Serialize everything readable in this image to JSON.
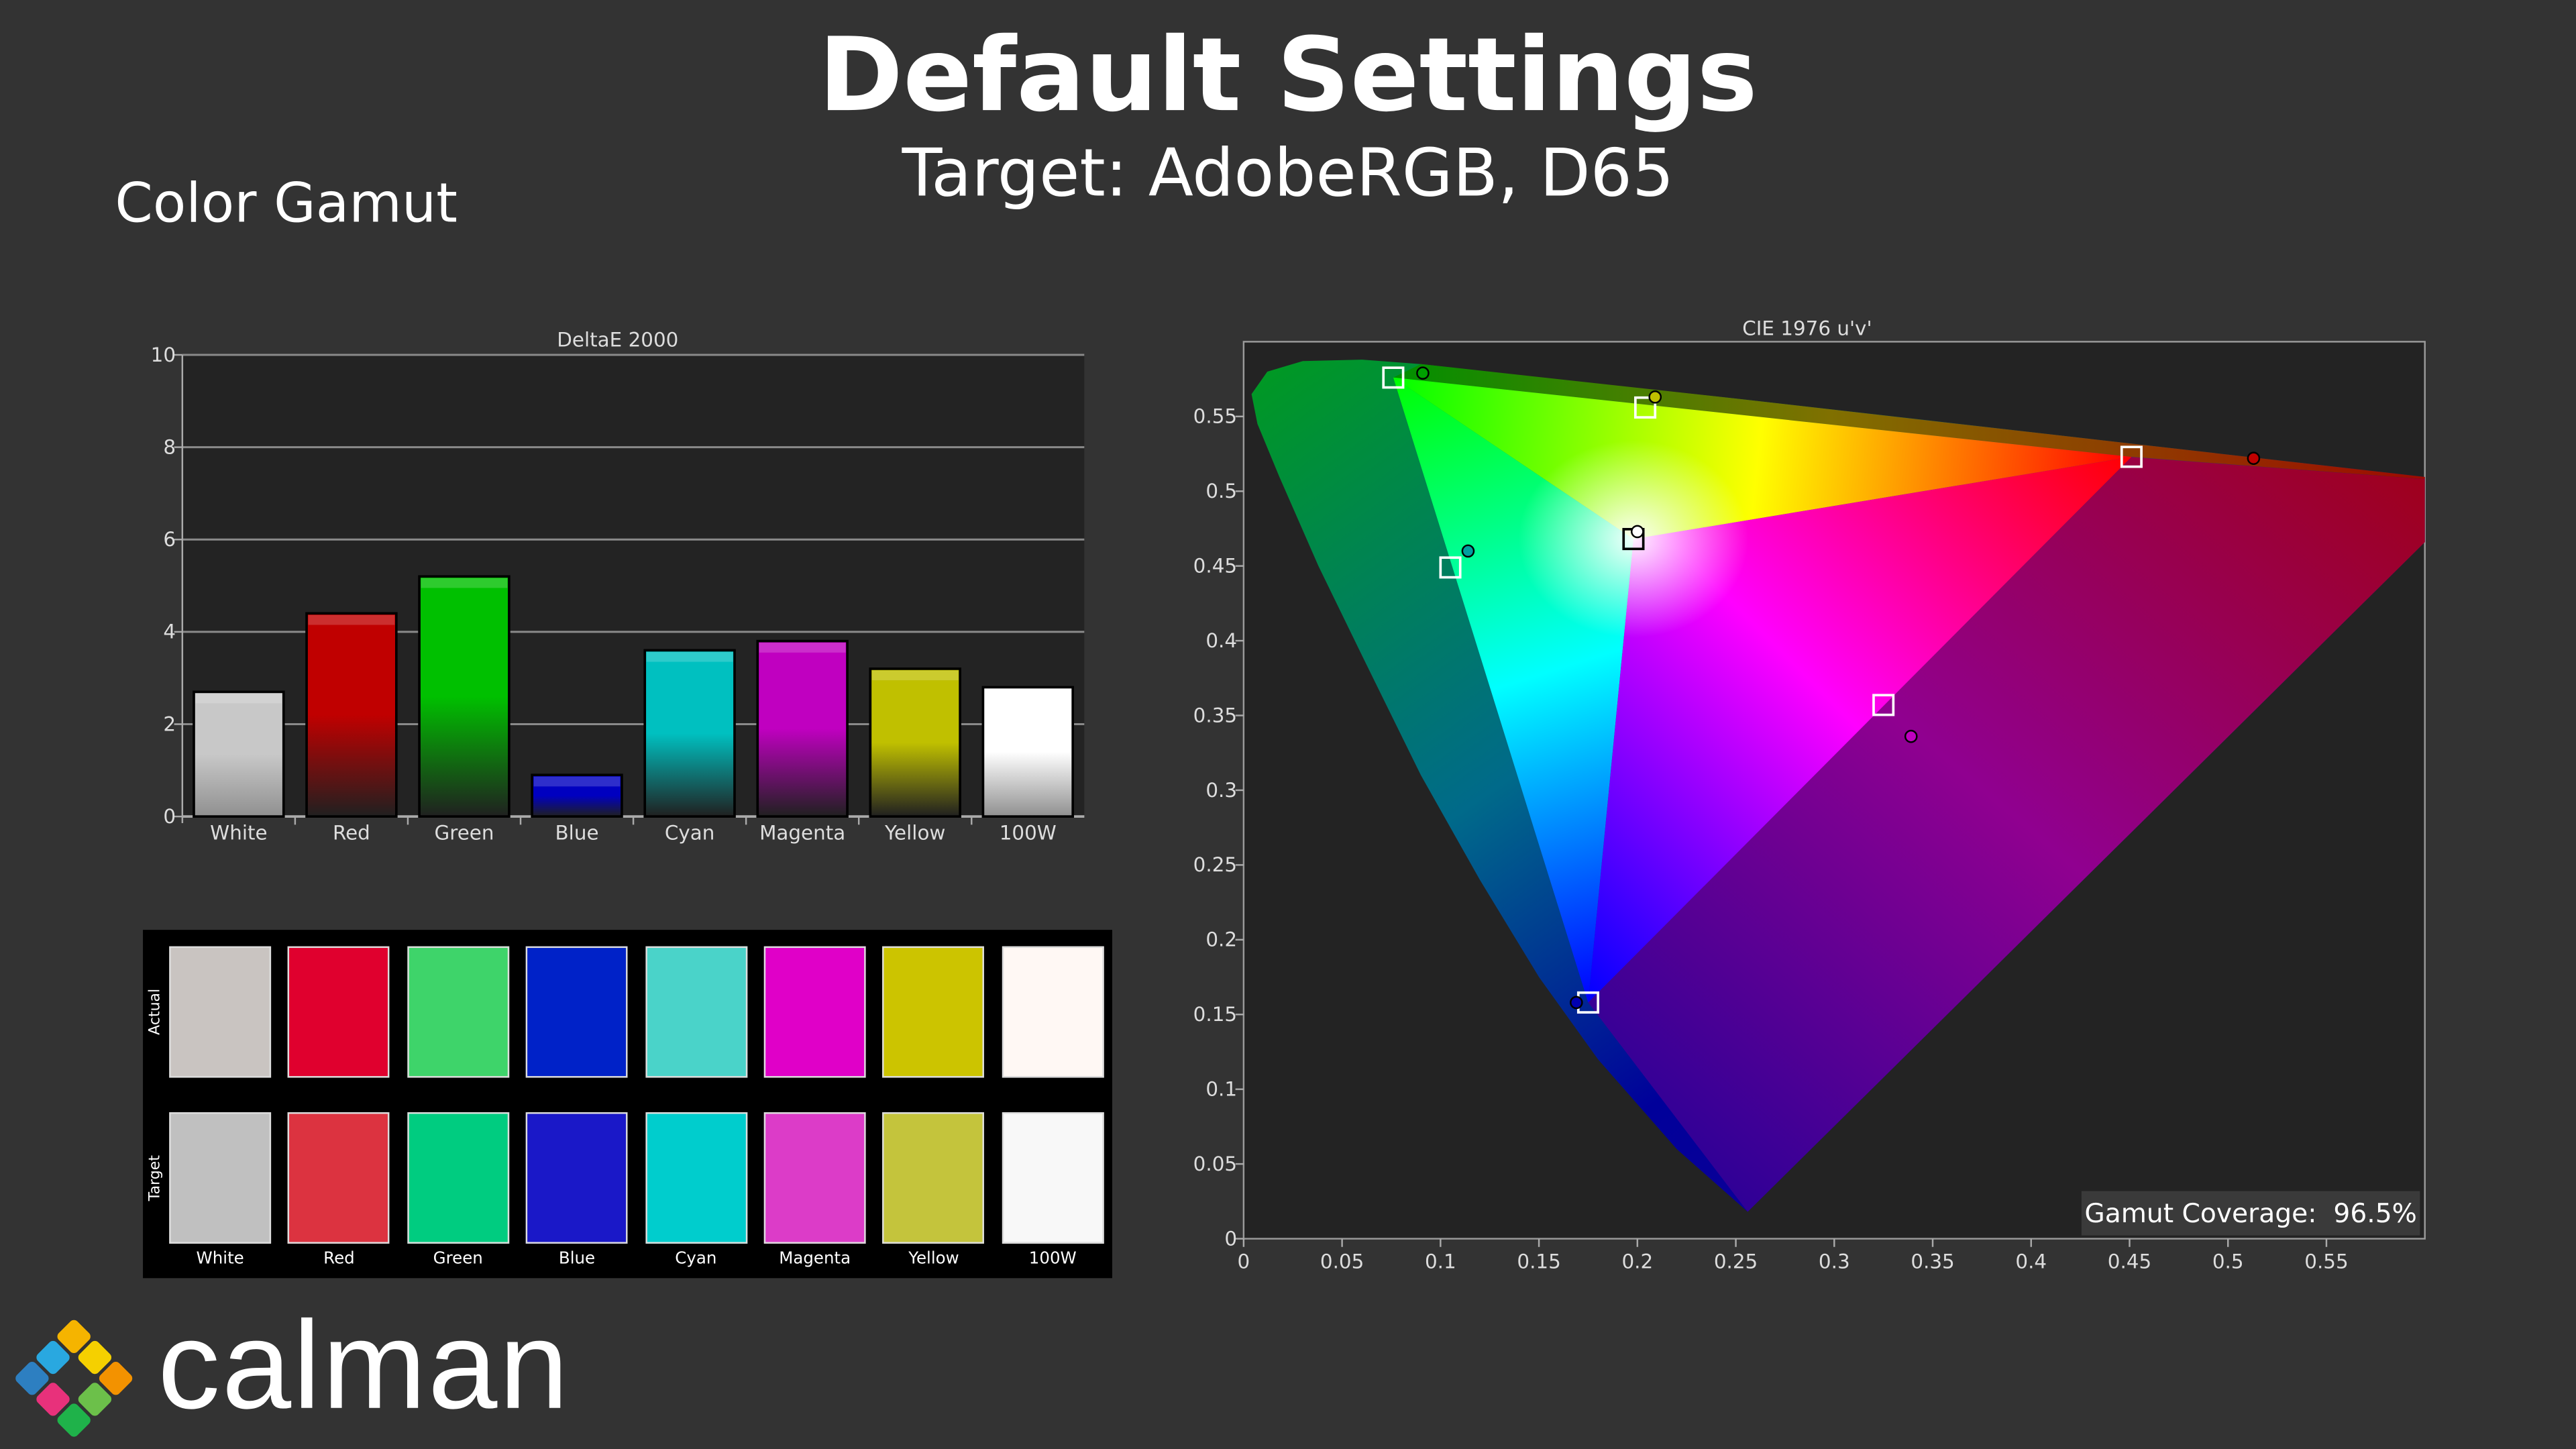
{
  "header": {
    "title": "Default Settings",
    "subtitle": "Target: AdobeRGB, D65",
    "section": "Color Gamut"
  },
  "chart_data": [
    {
      "type": "bar",
      "title": "DeltaE 2000",
      "categories": [
        "White",
        "Red",
        "Green",
        "Blue",
        "Cyan",
        "Magenta",
        "Yellow",
        "100W"
      ],
      "values": [
        2.7,
        4.4,
        5.2,
        0.9,
        3.6,
        3.8,
        3.2,
        2.8
      ],
      "ylim": [
        0,
        10
      ],
      "yticks": [
        "0",
        "2",
        "4",
        "6",
        "8",
        "10"
      ],
      "grid": true,
      "colors": [
        "#c8c8c8",
        "#c00000",
        "#00c000",
        "#0000c0",
        "#00c0c0",
        "#c000c0",
        "#c0c000",
        "#ffffff"
      ]
    },
    {
      "type": "scatter",
      "title": "CIE 1976 u'v'",
      "xlim": [
        0,
        0.6
      ],
      "ylim": [
        0,
        0.6
      ],
      "xticks": [
        "0",
        "0.05",
        "0.1",
        "0.15",
        "0.2",
        "0.25",
        "0.3",
        "0.35",
        "0.4",
        "0.45",
        "0.5",
        "0.55"
      ],
      "yticks": [
        "0",
        "0.05",
        "0.1",
        "0.15",
        "0.2",
        "0.25",
        "0.3",
        "0.35",
        "0.4",
        "0.45",
        "0.5",
        "0.55"
      ],
      "targets": [
        {
          "label": "Red",
          "u": 0.451,
          "v": 0.523
        },
        {
          "label": "Green",
          "u": 0.076,
          "v": 0.576
        },
        {
          "label": "Blue",
          "u": 0.175,
          "v": 0.158
        },
        {
          "label": "White",
          "u": 0.198,
          "v": 0.468
        },
        {
          "label": "Cyan",
          "u": 0.105,
          "v": 0.449
        },
        {
          "label": "Magenta",
          "u": 0.325,
          "v": 0.357
        },
        {
          "label": "Yellow",
          "u": 0.204,
          "v": 0.556
        }
      ],
      "measured": [
        {
          "label": "Red",
          "u": 0.513,
          "v": 0.522,
          "color": "#c00000"
        },
        {
          "label": "Green",
          "u": 0.091,
          "v": 0.579,
          "color": "#00a000"
        },
        {
          "label": "Blue",
          "u": 0.169,
          "v": 0.158,
          "color": "#0000b0"
        },
        {
          "label": "White",
          "u": 0.2,
          "v": 0.473,
          "color": "#ffffff"
        },
        {
          "label": "Cyan",
          "u": 0.114,
          "v": 0.46,
          "color": "#00a0a0"
        },
        {
          "label": "Magenta",
          "u": 0.339,
          "v": 0.336,
          "color": "#c000c0"
        },
        {
          "label": "Yellow",
          "u": 0.209,
          "v": 0.563,
          "color": "#c0c000"
        }
      ],
      "coverage_label": "Gamut Coverage:",
      "coverage_value": "96.5%"
    }
  ],
  "swatches": {
    "row_labels": {
      "actual": "Actual",
      "target": "Target"
    },
    "items": [
      {
        "label": "White",
        "actual": "#c9c4c1",
        "target": "#c0c0c0"
      },
      {
        "label": "Red",
        "actual": "#e0002e",
        "target": "#dc3340"
      },
      {
        "label": "Green",
        "actual": "#3ed46a",
        "target": "#00cc80"
      },
      {
        "label": "Blue",
        "actual": "#0022c8",
        "target": "#1a18c8"
      },
      {
        "label": "Cyan",
        "actual": "#4ad3c9",
        "target": "#00cdcd"
      },
      {
        "label": "Magenta",
        "actual": "#e000c8",
        "target": "#dc3cc8"
      },
      {
        "label": "Yellow",
        "actual": "#ccc400",
        "target": "#c4c43c"
      },
      {
        "label": "100W",
        "actual": "#fff8f4",
        "target": "#f8f8f8"
      }
    ]
  },
  "logo": {
    "text": "calman"
  }
}
